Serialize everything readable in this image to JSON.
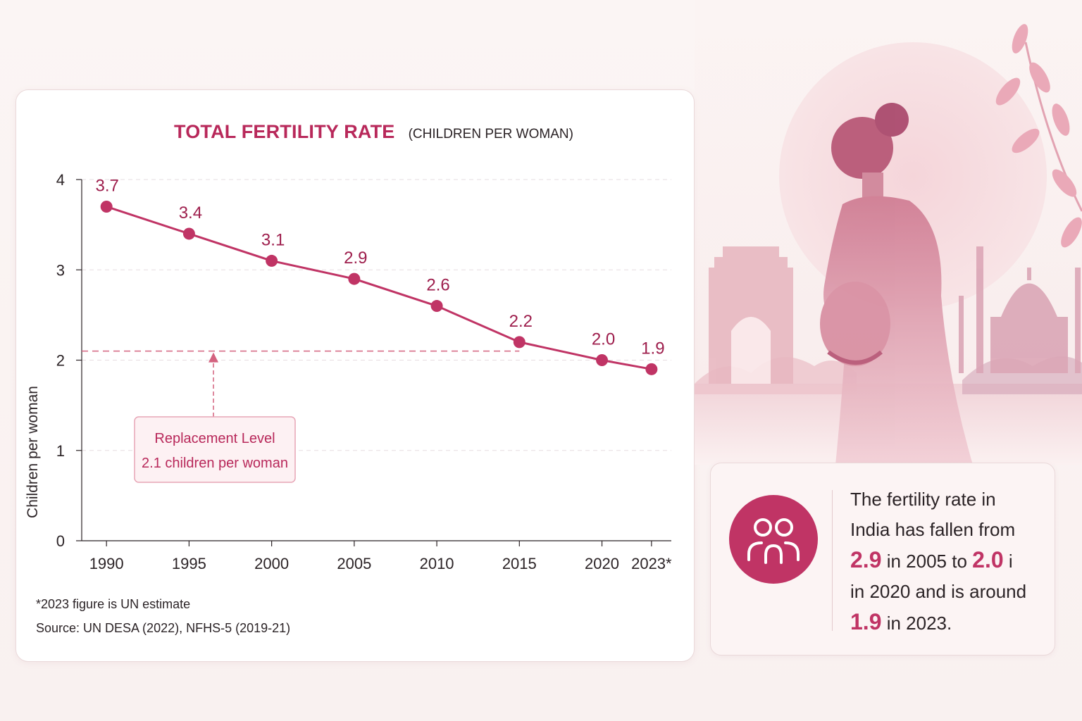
{
  "chart_data": {
    "type": "line",
    "title": "TOTAL FERTILITY RATE",
    "subtitle": "(CHILDREN PER WOMAN)",
    "ylabel": "Children per woman",
    "xlabel": "",
    "categories": [
      "1990",
      "1995",
      "2000",
      "2005",
      "2010",
      "2015",
      "2020",
      "2023*"
    ],
    "x": [
      1990,
      1995,
      2000,
      2005,
      2010,
      2015,
      2020,
      2023
    ],
    "series": [
      {
        "values": [
          3.7,
          3.4,
          3.1,
          2.9,
          2.6,
          2.2,
          2.0,
          1.9
        ],
        "labels": [
          "3.7",
          "3.4",
          "3.1",
          "2.9",
          "2.6",
          "2.2",
          "2.0",
          "1.9"
        ]
      }
    ],
    "ylim": [
      0,
      4
    ],
    "yticks": [
      "0",
      "1",
      "2",
      "3",
      "4"
    ],
    "grid": "horizontal dashed",
    "reference_line": {
      "value": 2.1
    },
    "annotation": {
      "line1": "Replacement Level",
      "line2": "2.1 children per woman"
    },
    "colors": {
      "line": "#c03465",
      "accent": "#b8285a",
      "grid": "#e6dde0"
    }
  },
  "footnote": "*2023 figure is UN estimate",
  "source": "Source: UN DESA (2022), NFHS-5 (2019-21)",
  "fact": {
    "icon": "people-icon",
    "line1": "The fertility rate in",
    "line2": "India has fallen from",
    "v2005": "2.9",
    "t_in2005": " in 2005 to ",
    "v2020": "2.0",
    "t_tail": " i",
    "line4": "in 2020 and is around",
    "v2023": "1.9",
    "t_in2023": " in 2023."
  },
  "illustration": {
    "subject": "pregnant-woman-illustration",
    "landmarks": [
      "india-gate-icon",
      "taj-mahal-icon"
    ],
    "palette": {
      "rose": "#d98ea2",
      "deep": "#b65574",
      "mist": "#f4dfe2"
    }
  }
}
